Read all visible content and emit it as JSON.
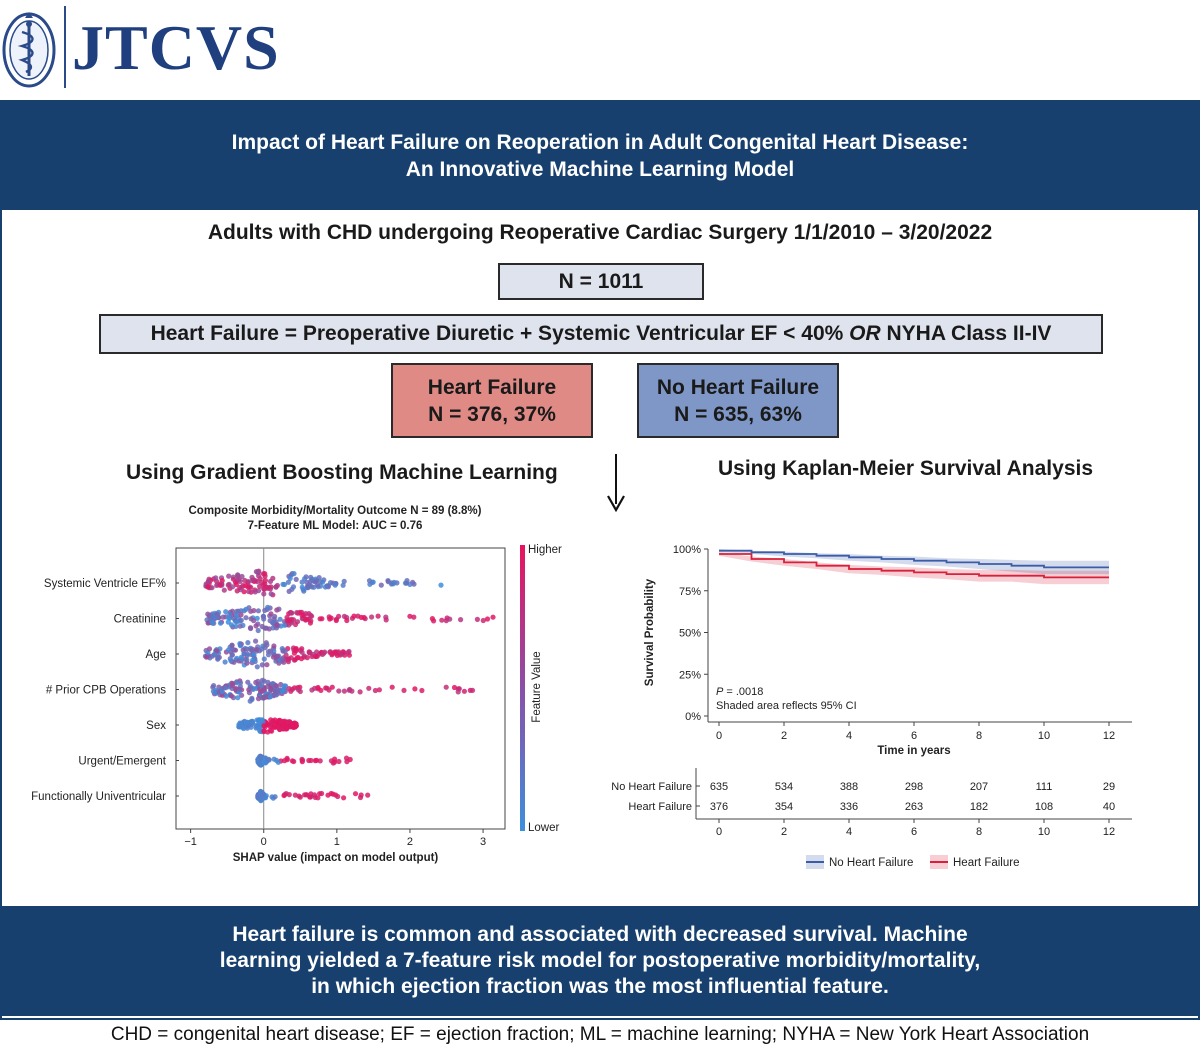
{
  "header": {
    "journal": "JTCVS",
    "logo": "journal-seal"
  },
  "title": {
    "line1": "Impact of Heart Failure on Reoperation in Adult Congenital Heart Disease:",
    "line2": "An Innovative Machine Learning Model"
  },
  "cohort": "Adults with CHD undergoing Reoperative Cardiac Surgery 1/1/2010 – 3/20/2022",
  "total_n": "N = 1011",
  "definition": {
    "part1": "Heart Failure = Preoperative Diuretic + Systemic Ventricular EF < 40% ",
    "emphasis": "OR",
    "part2": " NYHA Class II-IV"
  },
  "groups": {
    "hf": {
      "label": "Heart Failure",
      "n": "N = 376, 37%"
    },
    "no_hf": {
      "label": "No Heart Failure",
      "n": "N = 635, 63%"
    }
  },
  "sections": {
    "ml": "Using Gradient Boosting Machine Learning",
    "km": "Using Kaplan-Meier Survival Analysis"
  },
  "shap_titles": {
    "line1": "Composite Morbidity/Mortality Outcome N = 89 (8.8%)",
    "line2": "7-Feature ML Model: AUC = 0.76"
  },
  "chart_data": [
    {
      "type": "scatter",
      "subtype": "shap-beeswarm",
      "title": "Composite Morbidity/Mortality Outcome N = 89 (8.8%)",
      "subtitle": "7-Feature ML Model: AUC = 0.76",
      "xlabel": "SHAP value (impact on model output)",
      "xlim": [
        -1.2,
        3.3
      ],
      "xticks": [
        -1,
        0,
        1,
        2,
        3
      ],
      "colorbar": {
        "label": "Feature Value",
        "high": "Higher",
        "low": "Lower",
        "high_color": "#e8135e",
        "low_color": "#3d8fdc"
      },
      "features": [
        {
          "name": "Systemic Ventricle EF%",
          "min": -1.0,
          "max": 2.5,
          "core": [
            -0.8,
            0.9
          ],
          "spread": 0.95
        },
        {
          "name": "Creatinine",
          "min": -0.9,
          "max": 3.2,
          "core": [
            -0.8,
            0.7
          ],
          "spread": 0.9
        },
        {
          "name": "Age",
          "min": -1.0,
          "max": 1.2,
          "core": [
            -0.8,
            0.6
          ],
          "spread": 0.95
        },
        {
          "name": "# Prior CPB Operations",
          "min": -0.8,
          "max": 3.0,
          "core": [
            -0.7,
            0.3
          ],
          "spread": 0.85
        },
        {
          "name": "Sex",
          "min": -0.45,
          "max": 0.45,
          "core": [
            -0.35,
            0.4
          ],
          "spread": 0.55
        },
        {
          "name": "Urgent/Emergent",
          "min": -0.1,
          "max": 1.3,
          "core": [
            -0.08,
            0.0
          ],
          "spread": 0.35
        },
        {
          "name": "Functionally Univentricular",
          "min": -0.1,
          "max": 1.45,
          "core": [
            -0.08,
            0.0
          ],
          "spread": 0.35
        }
      ]
    },
    {
      "type": "line",
      "subtype": "kaplan-meier",
      "xlabel": "Time in years",
      "ylabel": "Survival Probability",
      "xlim": [
        0,
        12
      ],
      "ylim": [
        0,
        100
      ],
      "xticks": [
        0,
        2,
        4,
        6,
        8,
        10,
        12
      ],
      "yticks": [
        0,
        25,
        50,
        75,
        100
      ],
      "ytick_labels": [
        "0%",
        "25%",
        "50%",
        "75%",
        "100%"
      ],
      "annotation_p_label": "P",
      "annotation_p_value": " = .0018",
      "annotation_ci": "Shaded area reflects 95% CI",
      "series": [
        {
          "name": "No Heart Failure",
          "color": "#3b5da8",
          "x": [
            0,
            1,
            2,
            3,
            4,
            5,
            6,
            7,
            8,
            9,
            10,
            11,
            12
          ],
          "y": [
            99,
            98,
            97,
            96,
            95,
            94,
            93,
            92,
            91,
            90,
            89,
            89,
            89
          ],
          "ci_halfwidth": [
            1,
            1,
            1.5,
            1.5,
            2,
            2,
            2.5,
            2.5,
            3,
            3.5,
            4,
            4,
            4
          ]
        },
        {
          "name": "Heart Failure",
          "color": "#d8203a",
          "x": [
            0,
            1,
            2,
            3,
            4,
            5,
            6,
            7,
            8,
            9,
            10,
            11,
            12
          ],
          "y": [
            97,
            94,
            92,
            90,
            88,
            87,
            86,
            85,
            84,
            84,
            83,
            83,
            83
          ],
          "ci_halfwidth": [
            1,
            1.5,
            2,
            2,
            2.5,
            2.5,
            3,
            3,
            3.5,
            3.5,
            4,
            4,
            4
          ]
        }
      ],
      "risk_table": {
        "times": [
          0,
          2,
          4,
          6,
          8,
          10,
          12
        ],
        "rows": [
          {
            "label": "No Heart Failure",
            "values": [
              635,
              534,
              388,
              298,
              207,
              111,
              29
            ]
          },
          {
            "label": "Heart Failure",
            "values": [
              376,
              354,
              336,
              263,
              182,
              108,
              40
            ]
          }
        ]
      },
      "legend": [
        "No Heart Failure",
        "Heart Failure"
      ],
      "legend_position": "bottom"
    }
  ],
  "conclusion": {
    "line1": "Heart failure is common and associated with decreased survival. Machine",
    "line2": "learning yielded a 7-feature risk model for postoperative morbidity/mortality,",
    "line3": "in which ejection fraction was the most influential feature."
  },
  "abbreviations": "CHD = congenital heart disease; EF = ejection fraction; ML = machine learning; NYHA = New York Heart Association"
}
